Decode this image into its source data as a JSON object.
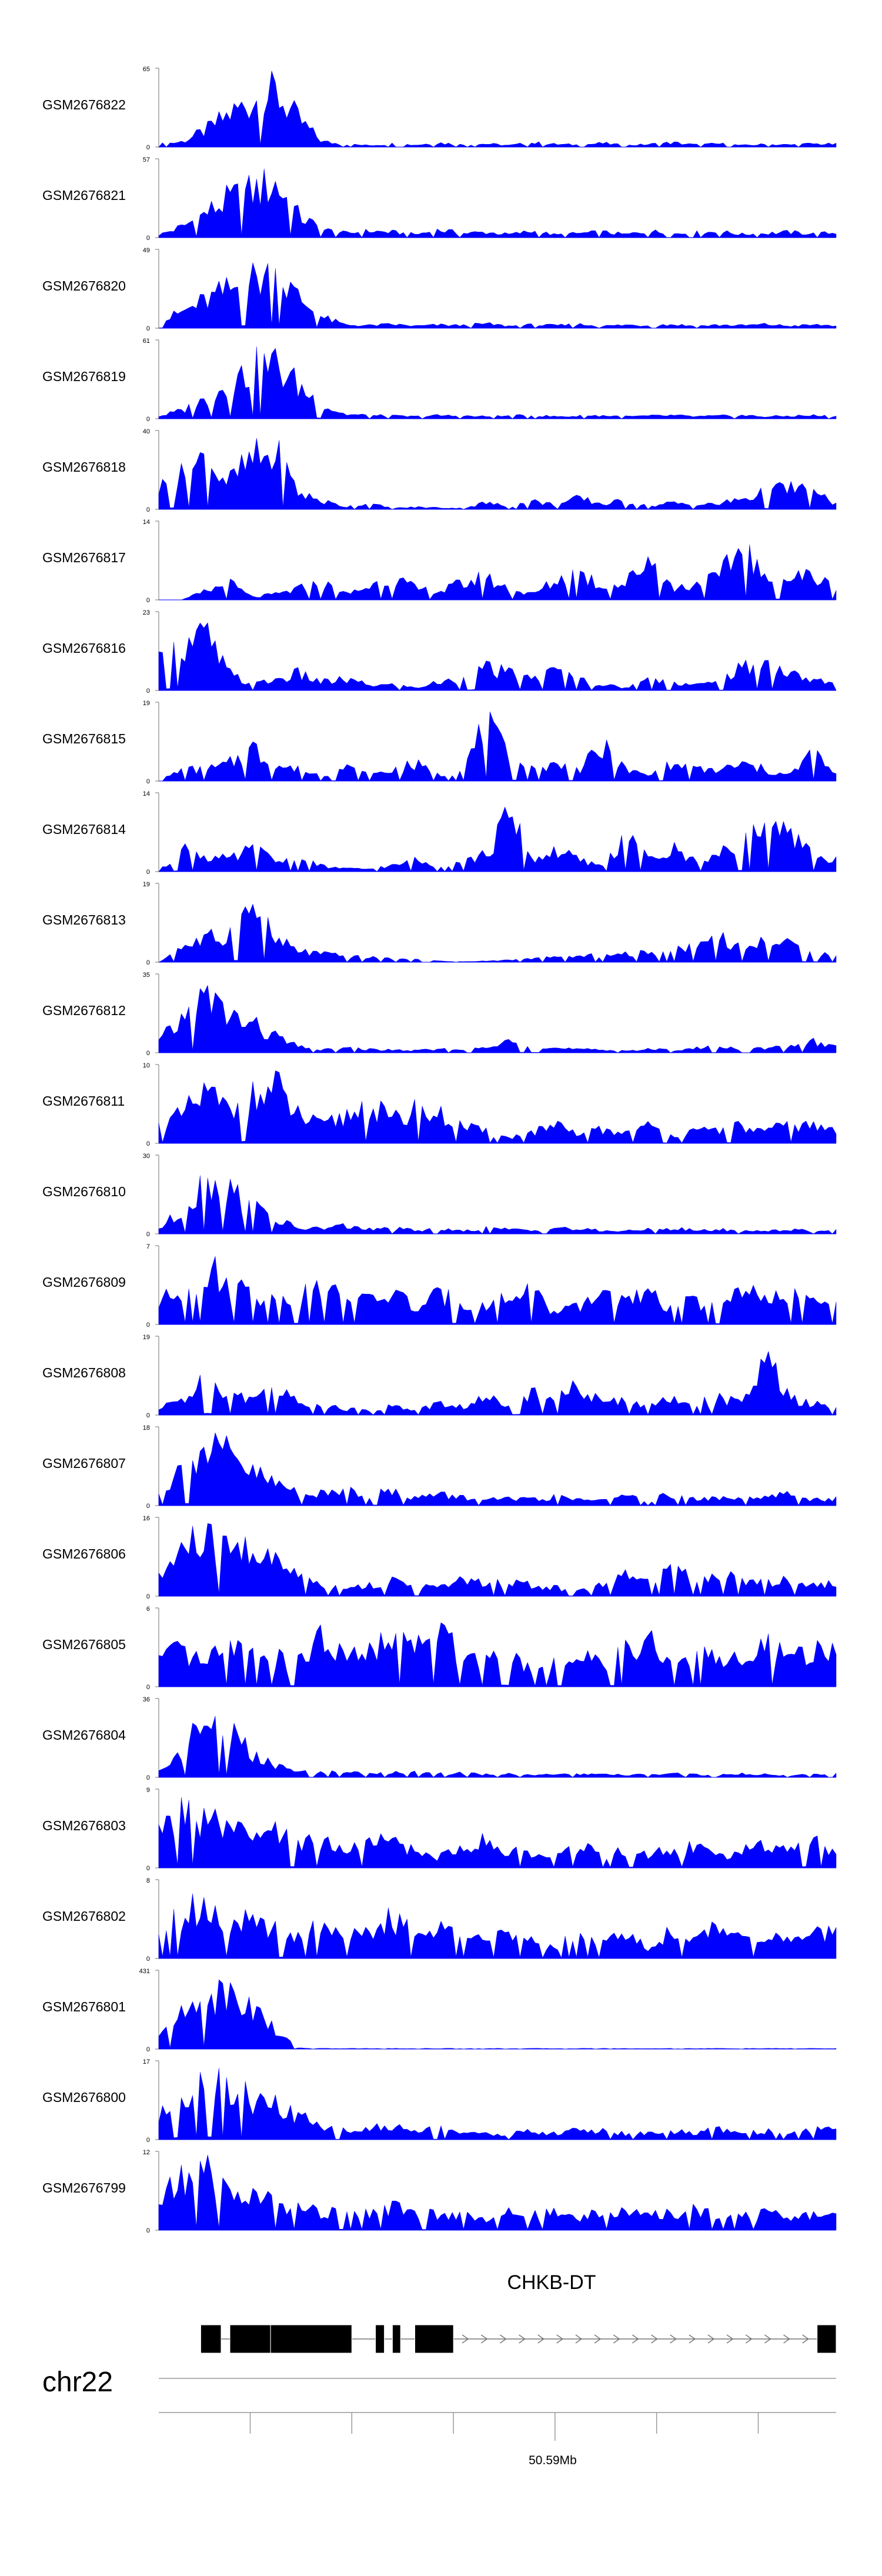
{
  "chart_data": {
    "type": "area",
    "title": "",
    "fill_color": "#0000ff",
    "ymin": 0,
    "tracks": [
      {
        "name": "GSM2676822",
        "ymax": "65",
        "profile": [
          0.05,
          0.1,
          0.3,
          0.6,
          0.85,
          1.0,
          0.5,
          0.1,
          0.05,
          0.03,
          0.06,
          0.04,
          0.08,
          0.04,
          0.06,
          0.03,
          0.08,
          0.05,
          0.04,
          0.07,
          0.03,
          0.05,
          0.08,
          0.04,
          0.06,
          0.03,
          0.05,
          0.04,
          0.06,
          0.05
        ]
      },
      {
        "name": "GSM2676821",
        "ymax": "57",
        "profile": [
          0.05,
          0.2,
          0.45,
          0.7,
          0.85,
          1.0,
          0.4,
          0.15,
          0.08,
          0.12,
          0.1,
          0.06,
          0.14,
          0.08,
          0.1,
          0.06,
          0.12,
          0.05,
          0.08,
          0.1,
          0.06,
          0.12,
          0.07,
          0.09,
          0.11,
          0.06,
          0.08,
          0.1,
          0.07,
          0.09
        ]
      },
      {
        "name": "GSM2676820",
        "ymax": "49",
        "profile": [
          0.1,
          0.3,
          0.5,
          0.7,
          0.9,
          1.0,
          0.55,
          0.2,
          0.06,
          0.05,
          0.07,
          0.04,
          0.06,
          0.05,
          0.08,
          0.04,
          0.06,
          0.05,
          0.07,
          0.04,
          0.06,
          0.05,
          0.07,
          0.04,
          0.06,
          0.05,
          0.07,
          0.04,
          0.06,
          0.05
        ]
      },
      {
        "name": "GSM2676819",
        "ymax": "61",
        "profile": [
          0.05,
          0.15,
          0.35,
          0.65,
          0.9,
          1.0,
          0.6,
          0.25,
          0.08,
          0.06,
          0.05,
          0.04,
          0.06,
          0.05,
          0.04,
          0.05,
          0.06,
          0.04,
          0.05,
          0.06,
          0.04,
          0.05,
          0.06,
          0.04,
          0.05,
          0.06,
          0.04,
          0.05,
          0.06,
          0.04
        ]
      },
      {
        "name": "GSM2676818",
        "ymax": "40",
        "profile": [
          0.4,
          0.6,
          0.95,
          0.5,
          0.9,
          1.0,
          0.3,
          0.15,
          0.05,
          0.1,
          0.02,
          0.04,
          0.03,
          0.02,
          0.12,
          0.05,
          0.15,
          0.08,
          0.2,
          0.1,
          0.15,
          0.05,
          0.12,
          0.08,
          0.1,
          0.2,
          0.3,
          0.4,
          0.3,
          0.1
        ]
      },
      {
        "name": "GSM2676817",
        "ymax": "14",
        "profile": [
          0.0,
          0.0,
          0.15,
          0.3,
          0.05,
          0.1,
          0.2,
          0.3,
          0.1,
          0.25,
          0.4,
          0.2,
          0.15,
          0.3,
          0.4,
          0.2,
          0.1,
          0.35,
          0.5,
          0.25,
          0.3,
          0.8,
          0.2,
          0.3,
          0.4,
          1.0,
          0.3,
          0.4,
          0.45,
          0.2
        ]
      },
      {
        "name": "GSM2676816",
        "ymax": "23",
        "profile": [
          0.5,
          0.8,
          1.0,
          0.3,
          0.1,
          0.2,
          0.3,
          0.15,
          0.2,
          0.1,
          0.1,
          0.05,
          0.15,
          0.2,
          0.4,
          0.3,
          0.2,
          0.35,
          0.2,
          0.1,
          0.05,
          0.2,
          0.15,
          0.1,
          0.15,
          0.4,
          0.5,
          0.3,
          0.2,
          0.1
        ]
      },
      {
        "name": "GSM2676815",
        "ymax": "19",
        "profile": [
          0.0,
          0.2,
          0.2,
          0.3,
          0.6,
          0.3,
          0.2,
          0.1,
          0.25,
          0.1,
          0.2,
          0.3,
          0.1,
          0.2,
          1.0,
          0.4,
          0.2,
          0.3,
          0.2,
          0.6,
          0.2,
          0.1,
          0.3,
          0.2,
          0.2,
          0.3,
          0.2,
          0.1,
          0.5,
          0.1
        ]
      },
      {
        "name": "GSM2676814",
        "ymax": "14",
        "profile": [
          0.0,
          0.4,
          0.3,
          0.2,
          0.4,
          0.2,
          0.2,
          0.1,
          0.05,
          0.05,
          0.1,
          0.2,
          0.1,
          0.2,
          0.3,
          1.0,
          0.2,
          0.4,
          0.2,
          0.1,
          0.6,
          0.2,
          0.4,
          0.2,
          0.3,
          0.5,
          0.8,
          0.6,
          0.3,
          0.2
        ]
      },
      {
        "name": "GSM2676813",
        "ymax": "19",
        "profile": [
          0.0,
          0.3,
          0.4,
          0.5,
          1.0,
          0.4,
          0.2,
          0.15,
          0.1,
          0.08,
          0.06,
          0.04,
          0.02,
          0.01,
          0.02,
          0.04,
          0.06,
          0.08,
          0.1,
          0.12,
          0.14,
          0.16,
          0.2,
          0.3,
          0.5,
          0.2,
          0.4,
          0.3,
          0.2,
          0.1
        ]
      },
      {
        "name": "GSM2676812",
        "ymax": "35",
        "profile": [
          0.2,
          0.6,
          1.0,
          0.7,
          0.5,
          0.3,
          0.1,
          0.05,
          0.08,
          0.06,
          0.05,
          0.04,
          0.06,
          0.05,
          0.08,
          0.2,
          0.15,
          0.08,
          0.06,
          0.05,
          0.04,
          0.06,
          0.05,
          0.08,
          0.1,
          0.06,
          0.08,
          0.1,
          0.2,
          0.1
        ]
      },
      {
        "name": "GSM2676811",
        "ymax": "10",
        "profile": [
          0.3,
          0.5,
          0.9,
          0.6,
          0.8,
          1.0,
          0.5,
          0.3,
          0.5,
          0.7,
          0.4,
          0.6,
          0.5,
          0.3,
          0.2,
          0.1,
          0.2,
          0.3,
          0.15,
          0.25,
          0.2,
          0.3,
          0.15,
          0.2,
          0.25,
          0.3,
          0.2,
          0.35,
          0.3,
          0.25
        ]
      },
      {
        "name": "GSM2676810",
        "ymax": "30",
        "profile": [
          0.1,
          0.4,
          1.0,
          0.8,
          0.5,
          0.25,
          0.1,
          0.1,
          0.15,
          0.08,
          0.1,
          0.06,
          0.08,
          0.05,
          0.1,
          0.08,
          0.06,
          0.12,
          0.08,
          0.06,
          0.05,
          0.08,
          0.1,
          0.06,
          0.08,
          0.05,
          0.06,
          0.08,
          0.05,
          0.06
        ]
      },
      {
        "name": "GSM2676809",
        "ymax": "7",
        "profile": [
          0.4,
          0.6,
          1.0,
          0.7,
          0.6,
          0.4,
          0.5,
          0.6,
          0.5,
          0.4,
          0.6,
          0.3,
          0.5,
          0.4,
          0.3,
          0.5,
          0.6,
          0.2,
          0.3,
          0.6,
          0.4,
          0.5,
          0.3,
          0.4,
          0.3,
          0.6,
          0.4,
          0.5,
          0.4,
          0.3
        ]
      },
      {
        "name": "GSM2676808",
        "ymax": "19",
        "profile": [
          0.1,
          0.3,
          0.6,
          0.4,
          0.3,
          0.5,
          0.2,
          0.2,
          0.1,
          0.1,
          0.15,
          0.1,
          0.2,
          0.15,
          0.3,
          0.2,
          0.4,
          0.3,
          0.5,
          0.2,
          0.3,
          0.15,
          0.3,
          0.2,
          0.3,
          0.2,
          1.0,
          0.3,
          0.2,
          0.1
        ]
      },
      {
        "name": "GSM2676807",
        "ymax": "18",
        "profile": [
          0.2,
          0.7,
          1.0,
          0.9,
          0.6,
          0.4,
          0.25,
          0.2,
          0.3,
          0.2,
          0.25,
          0.15,
          0.2,
          0.15,
          0.1,
          0.12,
          0.1,
          0.15,
          0.1,
          0.12,
          0.15,
          0.1,
          0.2,
          0.1,
          0.15,
          0.1,
          0.15,
          0.2,
          0.1,
          0.12
        ]
      },
      {
        "name": "GSM2676806",
        "ymax": "16",
        "profile": [
          0.3,
          0.9,
          1.0,
          0.8,
          0.9,
          0.6,
          0.4,
          0.2,
          0.15,
          0.2,
          0.25,
          0.2,
          0.15,
          0.3,
          0.2,
          0.25,
          0.2,
          0.15,
          0.1,
          0.2,
          0.35,
          0.25,
          0.5,
          0.3,
          0.4,
          0.3,
          0.25,
          0.3,
          0.2,
          0.25
        ]
      },
      {
        "name": "GSM2676805",
        "ymax": "6",
        "profile": [
          0.5,
          0.6,
          0.4,
          0.7,
          0.6,
          0.5,
          0.4,
          0.9,
          0.5,
          0.6,
          0.8,
          0.7,
          0.9,
          0.6,
          0.5,
          0.6,
          0.3,
          0.4,
          0.5,
          0.4,
          0.6,
          0.8,
          0.3,
          0.5,
          0.6,
          0.4,
          0.7,
          0.5,
          0.6,
          0.7
        ]
      },
      {
        "name": "GSM2676804",
        "ymax": "36",
        "profile": [
          0.1,
          0.5,
          1.0,
          0.8,
          0.4,
          0.2,
          0.1,
          0.08,
          0.1,
          0.06,
          0.08,
          0.1,
          0.06,
          0.08,
          0.05,
          0.06,
          0.05,
          0.04,
          0.06,
          0.05,
          0.04,
          0.05,
          0.06,
          0.05,
          0.04,
          0.06,
          0.05,
          0.04,
          0.05,
          0.06
        ]
      },
      {
        "name": "GSM2676803",
        "ymax": "9",
        "profile": [
          0.6,
          1.0,
          0.8,
          0.7,
          0.5,
          0.6,
          0.4,
          0.5,
          0.3,
          0.4,
          0.5,
          0.3,
          0.2,
          0.4,
          0.5,
          0.3,
          0.2,
          0.3,
          0.4,
          0.2,
          0.3,
          0.25,
          0.3,
          0.4,
          0.2,
          0.3,
          0.4,
          0.3,
          0.5,
          0.2
        ]
      },
      {
        "name": "GSM2676802",
        "ymax": "8",
        "profile": [
          0.6,
          0.8,
          1.0,
          0.7,
          0.6,
          0.5,
          0.4,
          0.6,
          0.5,
          0.4,
          0.7,
          0.4,
          0.5,
          0.6,
          0.3,
          0.4,
          0.3,
          0.2,
          0.5,
          0.3,
          0.4,
          0.2,
          0.5,
          0.3,
          0.6,
          0.5,
          0.4,
          0.3,
          0.4,
          0.5
        ]
      },
      {
        "name": "GSM2676801",
        "ymax": "431",
        "profile": [
          0.2,
          0.6,
          0.9,
          1.0,
          0.8,
          0.3,
          0.02,
          0.01,
          0.01,
          0.01,
          0.01,
          0.01,
          0.01,
          0.01,
          0.01,
          0.01,
          0.01,
          0.01,
          0.01,
          0.01,
          0.01,
          0.01,
          0.01,
          0.01,
          0.01,
          0.01,
          0.01,
          0.01,
          0.01,
          0.01
        ]
      },
      {
        "name": "GSM2676800",
        "ymax": "17",
        "profile": [
          0.4,
          0.8,
          1.0,
          0.9,
          0.7,
          0.6,
          0.4,
          0.2,
          0.15,
          0.2,
          0.25,
          0.15,
          0.2,
          0.15,
          0.1,
          0.1,
          0.15,
          0.1,
          0.2,
          0.15,
          0.1,
          0.12,
          0.15,
          0.1,
          0.2,
          0.12,
          0.15,
          0.1,
          0.2,
          0.15
        ]
      },
      {
        "name": "GSM2676799",
        "ymax": "12",
        "profile": [
          0.5,
          0.9,
          1.0,
          0.7,
          0.6,
          0.5,
          0.4,
          0.3,
          0.35,
          0.3,
          0.4,
          0.3,
          0.25,
          0.3,
          0.2,
          0.3,
          0.25,
          0.3,
          0.2,
          0.4,
          0.3,
          0.25,
          0.3,
          0.35,
          0.3,
          0.25,
          0.3,
          0.2,
          0.3,
          0.25
        ]
      }
    ],
    "gene": {
      "name": "CHKB-DT",
      "exons": [
        [
          0.062,
          0.092
        ],
        [
          0.105,
          0.165
        ],
        [
          0.165,
          0.285
        ],
        [
          0.32,
          0.333
        ],
        [
          0.345,
          0.357
        ],
        [
          0.378,
          0.435
        ],
        [
          0.972,
          1.0
        ]
      ],
      "intron_span": [
        0.435,
        0.972
      ]
    },
    "chromosome": "chr22",
    "axis": {
      "ticks": [
        0.135,
        0.285,
        0.435,
        0.585,
        0.735,
        0.885
      ],
      "labeled_tick": 0.585,
      "label": "50.59Mb"
    }
  }
}
